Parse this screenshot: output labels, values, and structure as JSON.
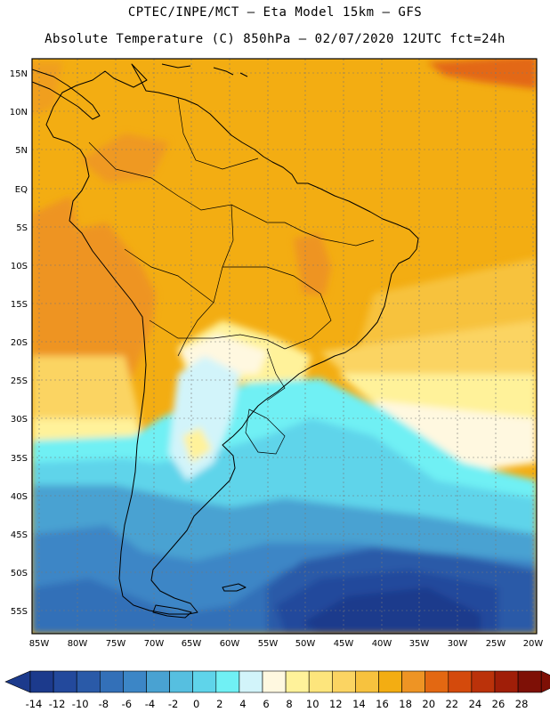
{
  "title_line_1": "CPTEC/INPE/MCT – Eta Model 15km – GFS",
  "title_line_2": "Absolute Temperature (C) 850hPa – 02/07/2020 12UTC fct=24h",
  "lat_labels": [
    "15N",
    "10N",
    "5N",
    "EQ",
    "5S",
    "10S",
    "15S",
    "20S",
    "25S",
    "30S",
    "35S",
    "40S",
    "45S",
    "50S",
    "55S"
  ],
  "lon_labels": [
    "85W",
    "80W",
    "75W",
    "70W",
    "65W",
    "60W",
    "55W",
    "50W",
    "45W",
    "40W",
    "35W",
    "30W",
    "25W",
    "20W"
  ],
  "colorbar": {
    "labels": [
      "-14",
      "-12",
      "-10",
      "-8",
      "-6",
      "-4",
      "-2",
      "0",
      "2",
      "4",
      "6",
      "8",
      "10",
      "12",
      "14",
      "16",
      "18",
      "20",
      "22",
      "24",
      "26",
      "28"
    ],
    "colors": [
      "#1c3a8c",
      "#23499c",
      "#2a5aa8",
      "#3370b8",
      "#3c86c6",
      "#49a2d2",
      "#56bfe0",
      "#5fd4ea",
      "#70f0f4",
      "#d2f4fa",
      "#fff8e0",
      "#fff29a",
      "#fde57c",
      "#fbd462",
      "#f7c23e",
      "#f3ad12",
      "#ee9424",
      "#e36812",
      "#d44a0c",
      "#bb320a",
      "#a01e08",
      "#7e1006"
    ]
  }
}
